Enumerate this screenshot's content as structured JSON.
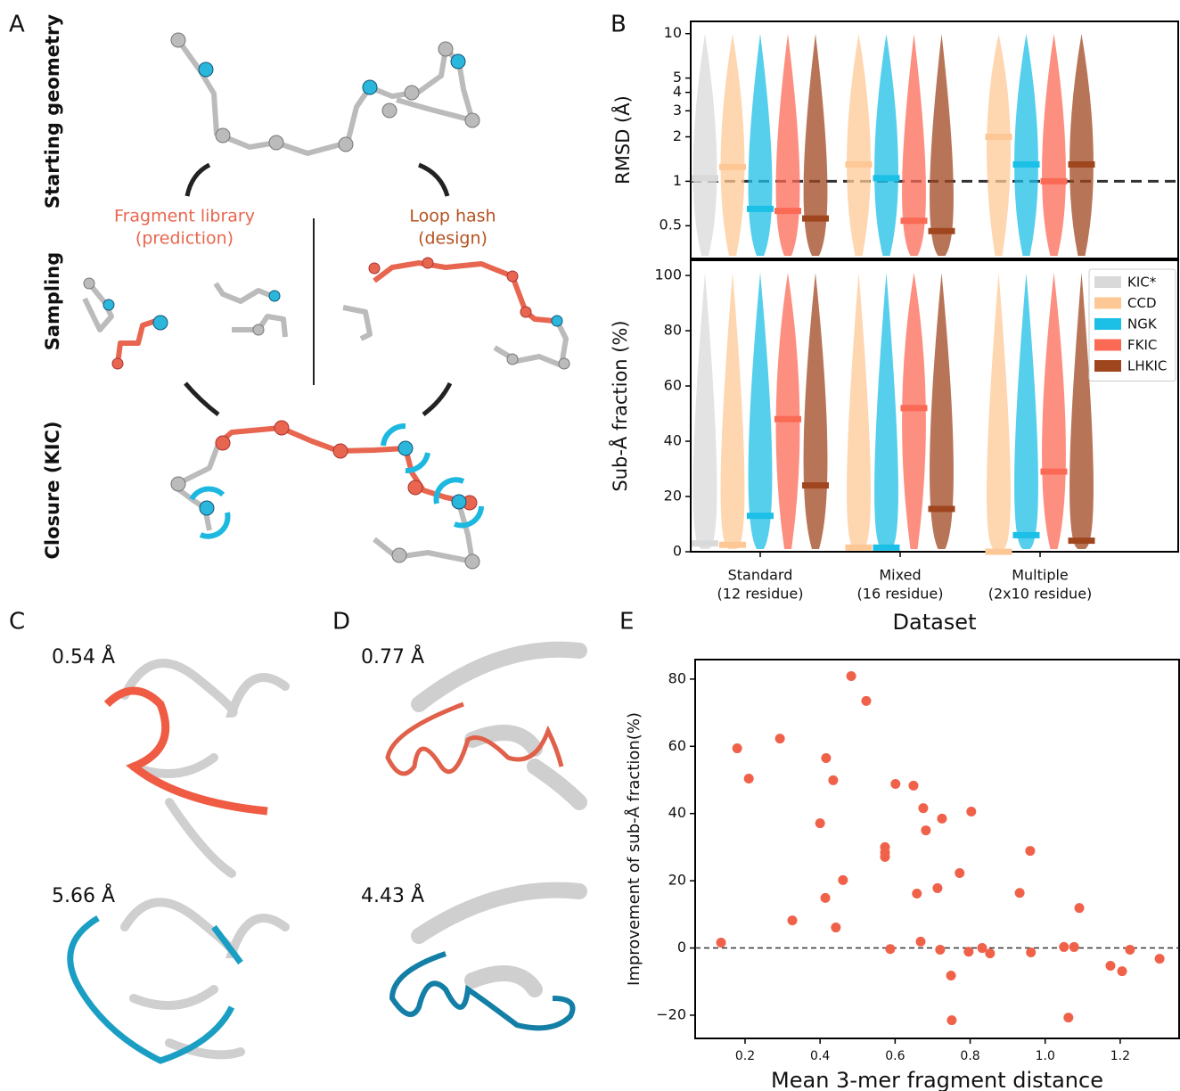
{
  "panel_labels": [
    "A",
    "B",
    "C",
    "D",
    "E"
  ],
  "panel_a": {
    "row_labels": [
      "Starting geometry",
      "Sampling",
      "Closure (KIC)"
    ],
    "fragment_library": [
      "Fragment library",
      "(prediction)"
    ],
    "loop_hash": [
      "Loop hash",
      "(design)"
    ]
  },
  "panel_c": {
    "rmsd_labels": [
      "0.54 Å",
      "5.66 Å"
    ]
  },
  "panel_d": {
    "rmsd_labels": [
      "0.77 Å",
      "4.43 Å"
    ]
  },
  "chart_data": [
    {
      "type": "violin",
      "y_label": "RMSD (Å)",
      "log_scale": true,
      "ylim": [
        0.3,
        12.1
      ],
      "yticks": [
        0.5,
        1,
        2,
        3,
        4,
        5,
        10
      ],
      "reference_line": 1,
      "series": [
        {
          "color": "#d9d9d9",
          "values": [
            1.05,
            null,
            null
          ]
        },
        {
          "color": "#fdc896",
          "values": [
            1.25,
            1.3,
            2.0
          ]
        },
        {
          "color": "#1cbfe6",
          "values": [
            0.65,
            1.05,
            1.3
          ]
        },
        {
          "color": "#fb6a55",
          "values": [
            0.63,
            0.54,
            1.0
          ]
        },
        {
          "color": "#a0461f",
          "values": [
            0.56,
            0.46,
            1.3
          ]
        }
      ]
    },
    {
      "type": "violin",
      "y_label": "Sub-Å fraction (%)",
      "x_label": "Dataset",
      "categories": [
        "Standard",
        "Mixed",
        "Multiple"
      ],
      "category_notes": [
        "(12 residue)",
        "(16 residue)",
        "(2x10 residue)"
      ],
      "ylim": [
        0,
        105.5
      ],
      "yticks": [
        0,
        20,
        40,
        60,
        80,
        100
      ],
      "legend": "upper right",
      "series": [
        {
          "name": "KIC*",
          "color": "#d9d9d9",
          "values": [
            3,
            null,
            null
          ]
        },
        {
          "name": "CCD",
          "color": "#fdc896",
          "values": [
            2.5,
            1.5,
            0
          ]
        },
        {
          "name": "NGK",
          "color": "#1cbfe6",
          "values": [
            13,
            1.5,
            6
          ]
        },
        {
          "name": "FKIC",
          "color": "#fb6a55",
          "values": [
            48,
            52,
            29
          ]
        },
        {
          "name": "LHKIC",
          "color": "#a0461f",
          "values": [
            24,
            15.5,
            4
          ]
        }
      ]
    },
    {
      "type": "scatter",
      "x_label": "Mean 3-mer fragment distance",
      "y_label": "Improvement of sub-Å fraction(%)",
      "xlim": [
        0.067,
        1.357
      ],
      "ylim": [
        -26.9,
        85.8
      ],
      "xticks": [
        0.2,
        0.4,
        0.6,
        0.8,
        {
          "value": 1,
          "label": "1.0"
        },
        1.2
      ],
      "yticks": [
        {
          "value": -20,
          "label": "−20"
        },
        0,
        20,
        40,
        60,
        80
      ],
      "reference_line": 0,
      "color": "#f0614a",
      "x": [
        0.136,
        0.179,
        0.21,
        0.293,
        0.326,
        0.4,
        0.416,
        0.414,
        0.435,
        0.442,
        0.461,
        0.483,
        0.523,
        0.573,
        0.573,
        0.573,
        0.587,
        0.601,
        0.649,
        0.658,
        0.668,
        0.675,
        0.682,
        0.713,
        0.72,
        0.725,
        0.749,
        0.751,
        0.772,
        0.796,
        0.803,
        0.832,
        0.853,
        0.932,
        0.96,
        0.962,
        1.05,
        1.077,
        1.062,
        1.091,
        1.174,
        1.205,
        1.226,
        1.305
      ],
      "values": [
        1.6,
        59.4,
        50.4,
        62.3,
        8.2,
        37.1,
        56.5,
        14.9,
        49.9,
        6.1,
        20.2,
        80.9,
        73.5,
        28.4,
        30,
        27.1,
        -0.3,
        48.8,
        48.3,
        16.2,
        1.9,
        41.6,
        35,
        17.8,
        -0.5,
        38.5,
        -8.2,
        -21.5,
        22.3,
        -1.1,
        40.6,
        0,
        -1.6,
        16.4,
        28.9,
        -1.3,
        0.3,
        0.3,
        -20.7,
        11.9,
        -5.3,
        -6.9,
        -0.5,
        -3.2
      ]
    }
  ]
}
